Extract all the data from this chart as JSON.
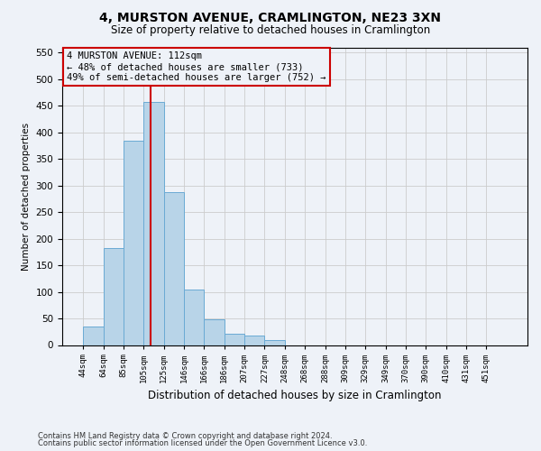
{
  "title": "4, MURSTON AVENUE, CRAMLINGTON, NE23 3XN",
  "subtitle": "Size of property relative to detached houses in Cramlington",
  "xlabel": "Distribution of detached houses by size in Cramlington",
  "ylabel": "Number of detached properties",
  "footnote1": "Contains HM Land Registry data © Crown copyright and database right 2024.",
  "footnote2": "Contains public sector information licensed under the Open Government Licence v3.0.",
  "bin_labels": [
    "44sqm",
    "64sqm",
    "85sqm",
    "105sqm",
    "125sqm",
    "146sqm",
    "166sqm",
    "186sqm",
    "207sqm",
    "227sqm",
    "248sqm",
    "268sqm",
    "288sqm",
    "309sqm",
    "329sqm",
    "349sqm",
    "370sqm",
    "390sqm",
    "410sqm",
    "431sqm",
    "451sqm"
  ],
  "bar_values": [
    35,
    183,
    385,
    458,
    287,
    105,
    48,
    22,
    18,
    10,
    0,
    0,
    0,
    0,
    0,
    0,
    0,
    0,
    0,
    0,
    0
  ],
  "bar_color": "#b8d4e8",
  "bar_edge_color": "#6aaad4",
  "property_line_label": "4 MURSTON AVENUE: 112sqm",
  "annotation_line1": "← 48% of detached houses are smaller (733)",
  "annotation_line2": "49% of semi-detached houses are larger (752) →",
  "annotation_box_color": "#cc0000",
  "ylim": [
    0,
    560
  ],
  "yticks": [
    0,
    50,
    100,
    150,
    200,
    250,
    300,
    350,
    400,
    450,
    500,
    550
  ],
  "grid_color": "#cccccc",
  "bg_color": "#eef2f8"
}
